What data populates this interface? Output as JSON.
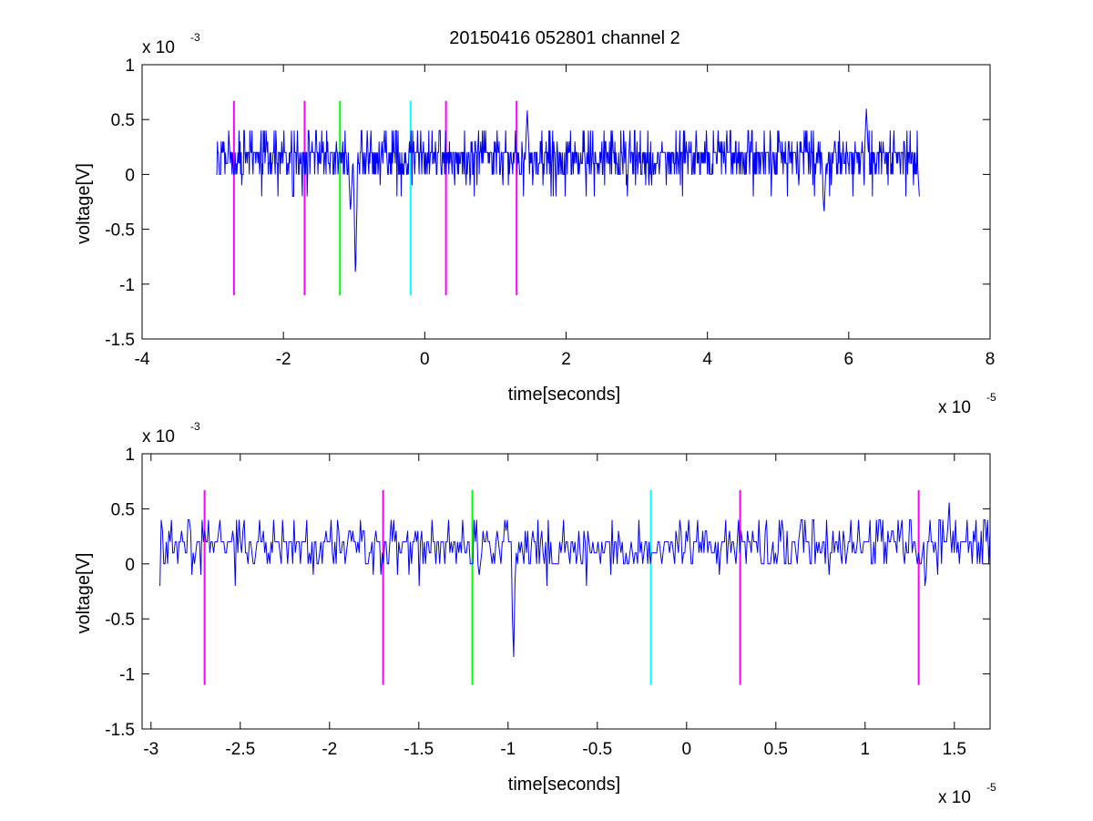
{
  "figure": {
    "title": "20150416 052801 channel 2"
  },
  "colors": {
    "signal": "#0000ff",
    "magenta": "#ff00ff",
    "green": "#00ff00",
    "cyan": "#00ffff",
    "axes": "#000000",
    "background": "#ffffff"
  },
  "chart_data": [
    {
      "type": "line",
      "title": "20150416 052801 channel 2",
      "xlabel": "time[seconds]",
      "ylabel": "voltage[V]",
      "x_multiplier": "x 10",
      "x_exponent": "-5",
      "y_multiplier": "x 10",
      "y_exponent": "-3",
      "xlim": [
        -4,
        8
      ],
      "ylim": [
        -1.5,
        1
      ],
      "x_ticks": [
        "-4",
        "-2",
        "0",
        "2",
        "4",
        "6",
        "8"
      ],
      "y_ticks": [
        "-1.5",
        "-1",
        "-0.5",
        "0",
        "0.5",
        "1"
      ],
      "grid": false,
      "series": [
        {
          "x_range": [
            -2.95,
            7.0
          ],
          "baseline": 0.1,
          "spikes": [
            {
              "x": -0.98,
              "y": -1.0
            },
            {
              "x": -1.05,
              "y": -0.35
            },
            {
              "x": 1.45,
              "y": 0.6
            },
            {
              "x": 6.25,
              "y": 0.6
            },
            {
              "x": 5.65,
              "y": -0.38
            },
            {
              "x": 7.0,
              "y": -0.2
            }
          ]
        }
      ],
      "markers": [
        {
          "x": -2.7,
          "color": "magenta",
          "ymin": -1.1,
          "ymax": 0.67
        },
        {
          "x": -1.7,
          "color": "magenta",
          "ymin": -1.1,
          "ymax": 0.67
        },
        {
          "x": -1.2,
          "color": "green",
          "ymin": -1.1,
          "ymax": 0.67
        },
        {
          "x": -0.2,
          "color": "cyan",
          "ymin": -1.1,
          "ymax": 0.67
        },
        {
          "x": 0.3,
          "color": "magenta",
          "ymin": -1.1,
          "ymax": 0.67
        },
        {
          "x": 1.3,
          "color": "magenta",
          "ymin": -1.1,
          "ymax": 0.67
        }
      ]
    },
    {
      "type": "line",
      "xlabel": "time[seconds]",
      "ylabel": "voltage[V]",
      "x_multiplier": "x 10",
      "x_exponent": "-5",
      "y_multiplier": "x 10",
      "y_exponent": "-3",
      "xlim": [
        -3.05,
        1.7
      ],
      "ylim": [
        -1.5,
        1
      ],
      "x_ticks": [
        "-3",
        "-2.5",
        "-2",
        "-1.5",
        "-1",
        "-0.5",
        "0",
        "0.5",
        "1",
        "1.5"
      ],
      "y_ticks": [
        "-1.5",
        "-1",
        "-0.5",
        "0",
        "0.5",
        "1"
      ],
      "grid": false,
      "series": [
        {
          "x_range": [
            -2.95,
            1.7
          ],
          "baseline": 0.1,
          "spikes": [
            {
              "x": -0.97,
              "y": -1.0
            },
            {
              "x": 1.47,
              "y": 0.6
            }
          ]
        }
      ],
      "markers": [
        {
          "x": -2.7,
          "color": "magenta",
          "ymin": -1.1,
          "ymax": 0.67
        },
        {
          "x": -1.7,
          "color": "magenta",
          "ymin": -1.1,
          "ymax": 0.67
        },
        {
          "x": -1.2,
          "color": "green",
          "ymin": -1.1,
          "ymax": 0.67
        },
        {
          "x": -0.2,
          "color": "cyan",
          "ymin": -1.1,
          "ymax": 0.67
        },
        {
          "x": 0.3,
          "color": "magenta",
          "ymin": -1.1,
          "ymax": 0.67
        },
        {
          "x": 1.3,
          "color": "magenta",
          "ymin": -1.1,
          "ymax": 0.67
        }
      ]
    }
  ]
}
